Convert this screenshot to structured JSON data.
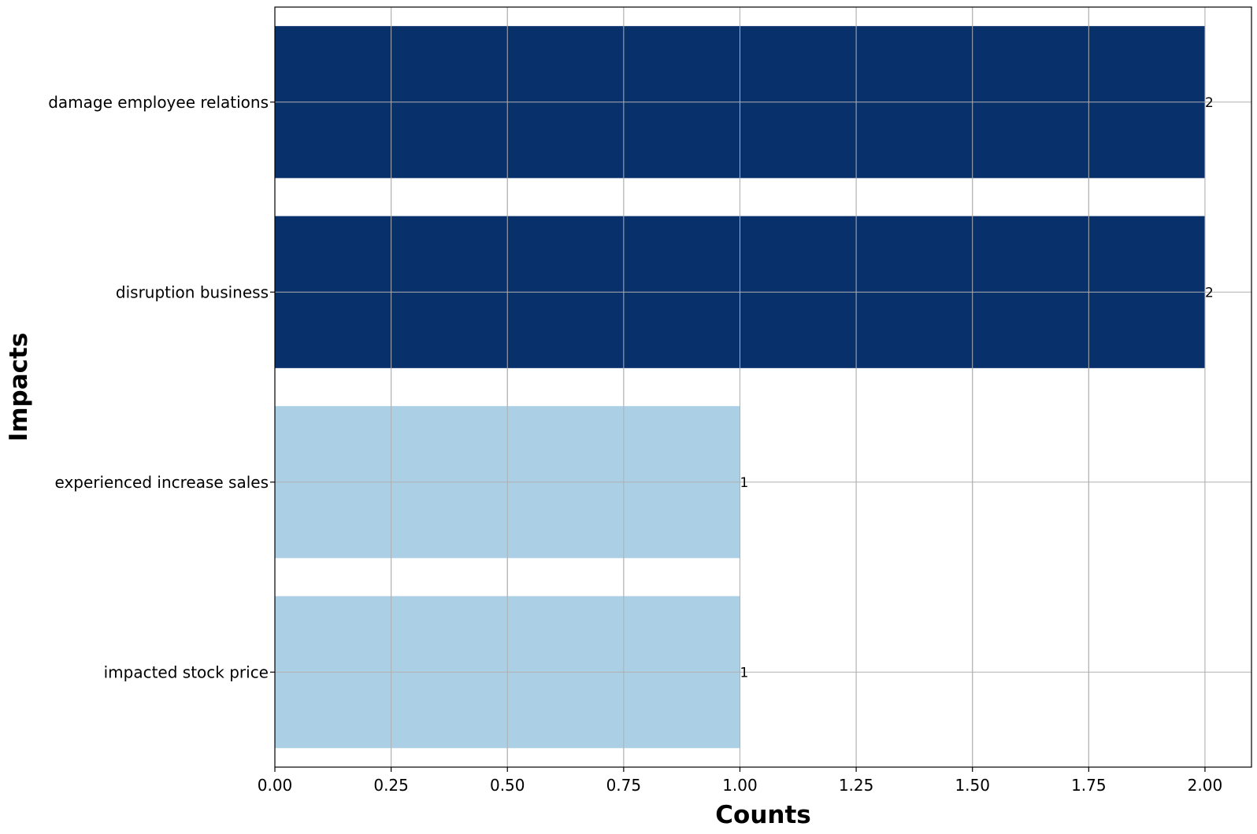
{
  "chart_data": {
    "type": "bar",
    "orientation": "horizontal",
    "title": "",
    "xlabel": "Counts",
    "ylabel": "Impacts",
    "categories": [
      "damage employee relations",
      "disruption business",
      "experienced increase sales",
      "impacted stock price"
    ],
    "values": [
      2,
      2,
      1,
      1
    ],
    "data_labels": [
      "2",
      "2",
      "1",
      "1"
    ],
    "bar_colors": [
      "#08306b",
      "#08306b",
      "#abd0e6",
      "#abd0e6"
    ],
    "xlim": [
      0,
      2.1
    ],
    "xticks": [
      0.0,
      0.25,
      0.5,
      0.75,
      1.0,
      1.25,
      1.5,
      1.75,
      2.0
    ],
    "xtick_labels": [
      "0.00",
      "0.25",
      "0.50",
      "0.75",
      "1.00",
      "1.25",
      "1.50",
      "1.75",
      "2.00"
    ],
    "grid": true
  }
}
